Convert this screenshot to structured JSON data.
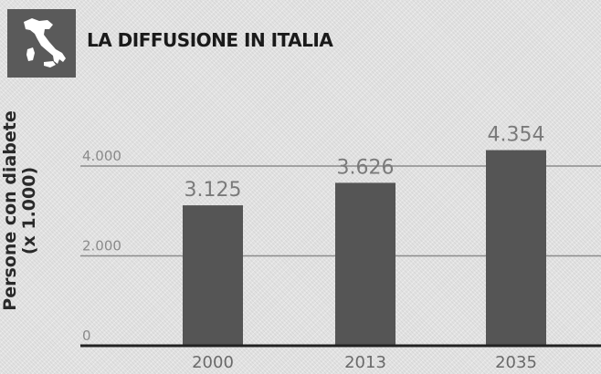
{
  "header": {
    "title": "LA DIFFUSIONE IN ITALIA",
    "logo_icon": "italy-map-icon"
  },
  "colors": {
    "bar": "#555555",
    "gridline": "#8c8c8c",
    "axis": "#222222",
    "logo_bg": "#5a5a5a"
  },
  "chart_data": {
    "type": "bar",
    "title": "",
    "xlabel": "",
    "ylabel_lines": [
      "Persone con diabete",
      "(x 1.000)"
    ],
    "categories": [
      "2000",
      "2013",
      "2035"
    ],
    "values": [
      3125,
      3626,
      4354
    ],
    "value_labels": [
      "3.125",
      "3.626",
      "4.354"
    ],
    "yticks": [
      0,
      2000,
      4000
    ],
    "ytick_labels": [
      "0",
      "2.000",
      "4.000"
    ],
    "ylim": [
      0,
      4800
    ],
    "grid": true,
    "legend": "none"
  }
}
